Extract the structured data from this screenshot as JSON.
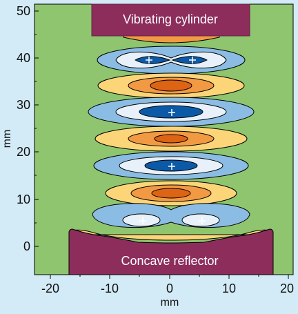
{
  "x_axis": {
    "label": "mm",
    "ticks": [
      "-20",
      "-10",
      "0",
      "10",
      "20"
    ]
  },
  "y_axis": {
    "label": "mm",
    "ticks": [
      "0",
      "10",
      "20",
      "30",
      "40",
      "50"
    ]
  },
  "labels": {
    "top": "Vibrating cylinder",
    "bottom": "Concave reflector"
  },
  "colors": {
    "background": "#8ec56e",
    "page": "#d3ebf7",
    "box": "#8c2d5c",
    "dark_blue": "#0b5aa8",
    "light_blue": "#8bbce3",
    "pale_blue": "#e8f1fa",
    "yellow": "#fbd578",
    "orange": "#f29a43",
    "dark_orange": "#dd6415"
  },
  "markers": {
    "symbol": "+"
  }
}
